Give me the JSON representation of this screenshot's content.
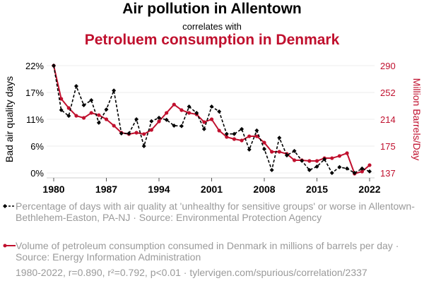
{
  "header": {
    "title": "Air pollution in Allentown",
    "subtitle": "correlates with",
    "title2": "Petroluem consumption in Denmark"
  },
  "legend": {
    "series1": "Percentage of days with air quality at 'unhealthy for sensitive groups' or worse in Allentown-Bethlehem-Easton, PA-NJ · Source: Environmental Protection Agency",
    "series2": "Volume of petroleum consumption consumed in Denmark in millions of barrels per day · Source: Energy Information Administration"
  },
  "footer": "1980-2022, r=0.890, r²=0.792, p<0.01 · tylervigen.com/spurious/correlation/2337",
  "colors": {
    "series1": "#000000",
    "series2": "#c0102e"
  },
  "chart_data": {
    "type": "line",
    "title": "Air pollution in Allentown correlates with Petroluem consumption in Denmark",
    "xlabel": "",
    "ylabel_left": "Bad air quality days",
    "ylabel_right": "Million Barrels/Day",
    "x": [
      1980,
      1981,
      1982,
      1983,
      1984,
      1985,
      1986,
      1987,
      1988,
      1989,
      1990,
      1991,
      1992,
      1993,
      1994,
      1995,
      1996,
      1997,
      1998,
      1999,
      2000,
      2001,
      2002,
      2003,
      2004,
      2005,
      2006,
      2007,
      2008,
      2009,
      2010,
      2011,
      2012,
      2013,
      2014,
      2015,
      2016,
      2017,
      2018,
      2019,
      2020,
      2021,
      2022
    ],
    "x_ticks": [
      "1980",
      "1987",
      "1994",
      "2001",
      "2008",
      "2015",
      "2022"
    ],
    "y_left_ticks": [
      "0%",
      "6%",
      "11%",
      "17%",
      "22%"
    ],
    "y_left_range": [
      0,
      22
    ],
    "y_right_ticks": [
      "137",
      "175",
      "214",
      "252",
      "290"
    ],
    "y_right_range": [
      137,
      290
    ],
    "grid": true,
    "series": [
      {
        "name": "Percentage of days with air quality at 'unhealthy for sensitive groups' or worse in Allentown-Bethlehem-Easton, PA-NJ",
        "axis": "left",
        "style": "dashed-diamond",
        "values": [
          22.0,
          12.9,
          11.7,
          17.8,
          13.9,
          14.9,
          10.3,
          13.0,
          16.9,
          8.1,
          8.1,
          11.0,
          5.5,
          10.6,
          11.3,
          10.9,
          9.7,
          9.6,
          13.6,
          12.3,
          9.0,
          13.6,
          12.6,
          8.0,
          8.0,
          9.0,
          4.8,
          8.7,
          4.9,
          0.6,
          7.2,
          3.6,
          4.5,
          2.5,
          0.6,
          1.3,
          2.8,
          0.0,
          1.2,
          0.9,
          0.0,
          0.9,
          0.3
        ]
      },
      {
        "name": "Volume of petroleum consumption consumed in Denmark in millions of barrels per day",
        "axis": "right",
        "style": "solid-dot",
        "values": [
          290.0,
          242.7,
          229.6,
          218.5,
          215.5,
          222.6,
          219.5,
          213.5,
          204.4,
          194.4,
          192.4,
          194.4,
          192.4,
          198.4,
          210.5,
          222.6,
          234.6,
          226.6,
          222.6,
          220.5,
          209.5,
          213.5,
          197.4,
          188.3,
          185.3,
          183.3,
          189.3,
          189.3,
          180.3,
          167.2,
          167.2,
          164.2,
          155.1,
          155.1,
          154.1,
          154.1,
          158.1,
          158.1,
          161.2,
          165.2,
          136.0,
          139.0,
          148.1
        ]
      }
    ]
  }
}
